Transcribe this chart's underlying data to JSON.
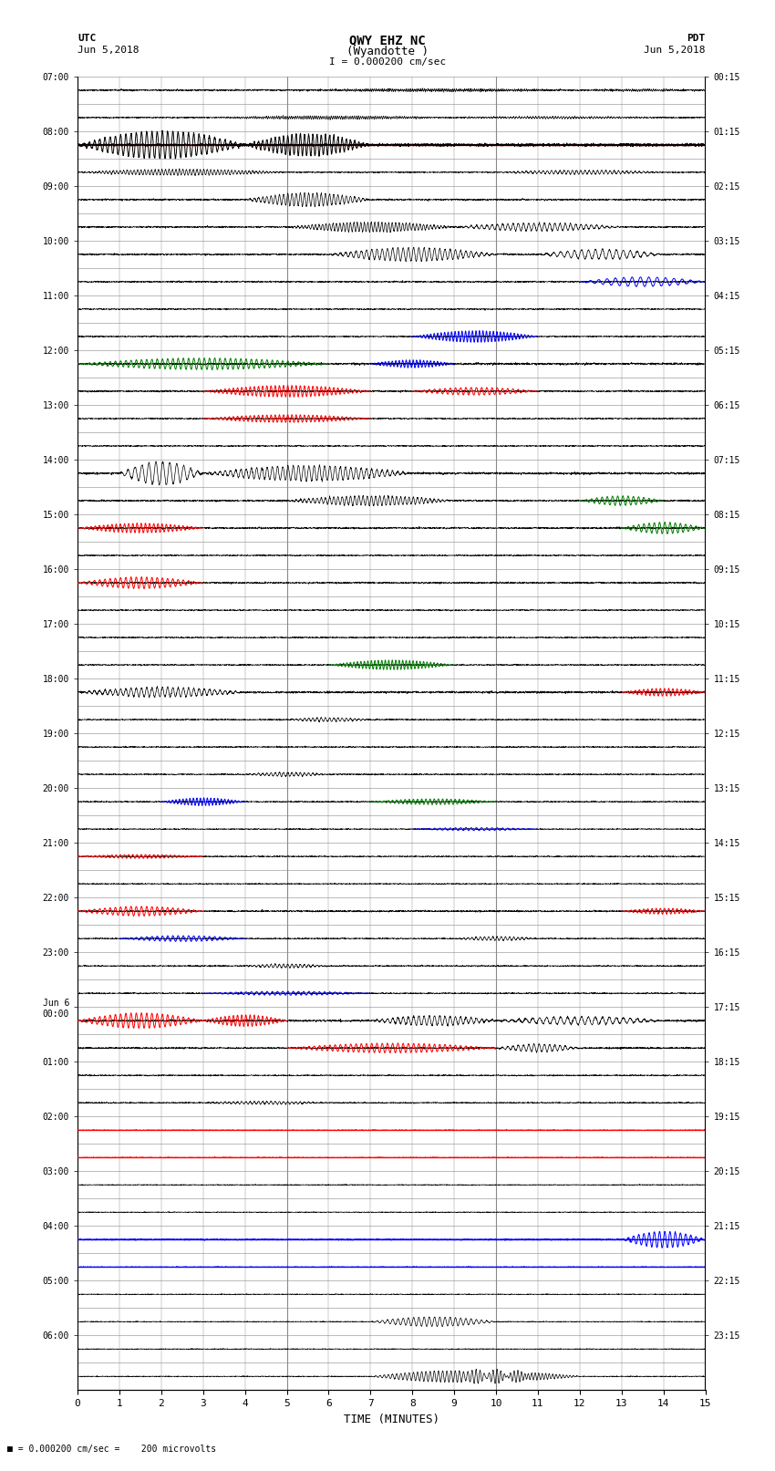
{
  "title_line1": "QWY EHZ NC",
  "title_line2": "(Wyandotte )",
  "scale_text": "I = 0.000200 cm/sec",
  "footer_text": "= 0.000200 cm/sec =    200 microvolts",
  "utc_label": "UTC",
  "utc_date": "Jun 5,2018",
  "pdt_label": "PDT",
  "pdt_date": "Jun 5,2018",
  "xlabel": "TIME (MINUTES)",
  "bg_color": "#ffffff",
  "x_min": 0,
  "x_max": 15,
  "num_rows": 48,
  "utc_times": [
    "07:00",
    "08:00",
    "09:00",
    "10:00",
    "11:00",
    "12:00",
    "13:00",
    "14:00",
    "15:00",
    "16:00",
    "17:00",
    "18:00",
    "19:00",
    "20:00",
    "21:00",
    "22:00",
    "23:00",
    "Jun 6\n00:00",
    "01:00",
    "02:00",
    "03:00",
    "04:00",
    "05:00",
    "06:00"
  ],
  "pdt_times": [
    "00:15",
    "01:15",
    "02:15",
    "03:15",
    "04:15",
    "05:15",
    "06:15",
    "07:15",
    "08:15",
    "09:15",
    "10:15",
    "11:15",
    "12:15",
    "13:15",
    "14:15",
    "15:15",
    "16:15",
    "17:15",
    "18:15",
    "19:15",
    "20:15",
    "21:15",
    "22:15",
    "23:15"
  ],
  "xticks": [
    0,
    1,
    2,
    3,
    4,
    5,
    6,
    7,
    8,
    9,
    10,
    11,
    12,
    13,
    14,
    15
  ],
  "x_tick_labels": [
    "0",
    "1",
    "2",
    "3",
    "4",
    "5",
    "6",
    "7",
    "8",
    "9",
    "10",
    "11",
    "12",
    "13",
    "14",
    "15"
  ]
}
